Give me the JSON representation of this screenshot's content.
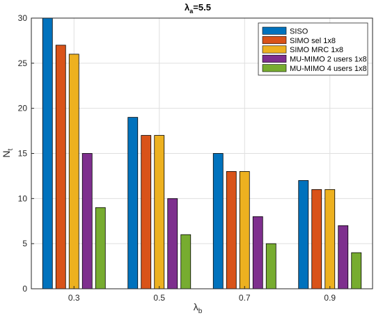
{
  "chart_data": {
    "type": "bar",
    "title": "λ",
    "title_sub": "a",
    "title_rest": "=5.5",
    "xlabel": "λ",
    "xlabel_sub": "b",
    "ylabel": "N",
    "ylabel_sub": "t",
    "categories": [
      "0.3",
      "0.5",
      "0.7",
      "0.9"
    ],
    "ylim": [
      0,
      30
    ],
    "yticks": [
      "0",
      "5",
      "10",
      "15",
      "20",
      "25",
      "30"
    ],
    "grid": true,
    "legend_position": "top-right",
    "series": [
      {
        "name": "SISO",
        "color": "#0072BD",
        "values": [
          30,
          19,
          15,
          12
        ]
      },
      {
        "name": "SIMO sel 1x8",
        "color": "#D95319",
        "values": [
          27,
          17,
          13,
          11
        ]
      },
      {
        "name": "SIMO MRC 1x8",
        "color": "#EDB120",
        "values": [
          26,
          17,
          13,
          11
        ]
      },
      {
        "name": "MU-MIMO 2 users 1x8",
        "color": "#7E2F8E",
        "values": [
          15,
          10,
          8,
          7
        ]
      },
      {
        "name": "MU-MIMO 4 users 1x8",
        "color": "#77AC30",
        "values": [
          9,
          6,
          5,
          4
        ]
      }
    ]
  }
}
